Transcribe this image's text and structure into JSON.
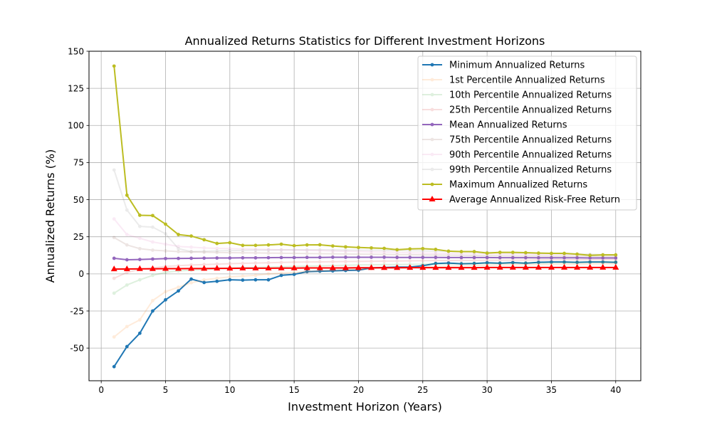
{
  "chart_data": {
    "type": "line",
    "title": "Annualized Returns Statistics for Different Investment Horizons",
    "xlabel": "Investment Horizon (Years)",
    "ylabel": "Annualized Returns (%)",
    "xlim": [
      -0.95,
      41.95
    ],
    "ylim": [
      -72.0,
      150.0
    ],
    "xticks": [
      0,
      5,
      10,
      15,
      20,
      25,
      30,
      35,
      40
    ],
    "yticks": [
      -50,
      -25,
      0,
      25,
      50,
      75,
      100,
      125,
      150
    ],
    "grid": true,
    "legend_position": "upper right",
    "x": [
      1,
      2,
      3,
      4,
      5,
      6,
      7,
      8,
      9,
      10,
      11,
      12,
      13,
      14,
      15,
      16,
      17,
      18,
      19,
      20,
      21,
      22,
      23,
      24,
      25,
      26,
      27,
      28,
      29,
      30,
      31,
      32,
      33,
      34,
      35,
      36,
      37,
      38,
      39,
      40
    ],
    "series": [
      {
        "name": "Minimum Annualized Returns",
        "color": "#1f77b4",
        "opacity": 1,
        "width": 2,
        "marker": "circle",
        "values": [
          -62.5,
          -49,
          -40,
          -25,
          -17.5,
          -11.5,
          -3.5,
          -5.8,
          -5,
          -4,
          -4.2,
          -4,
          -4,
          -1,
          -0.3,
          1.5,
          1.8,
          2,
          2.3,
          2.5,
          4,
          4.3,
          4.6,
          4.6,
          5.5,
          7,
          7.3,
          6.8,
          7,
          7.5,
          7.2,
          7.6,
          7.2,
          7.8,
          8,
          8,
          7.8,
          8,
          8,
          7.8
        ]
      },
      {
        "name": "1st Percentile Annualized Returns",
        "color": "#ff7f0e",
        "opacity": 0.15,
        "width": 2,
        "marker": "circle",
        "values": [
          -42.5,
          -35.5,
          -31,
          -18,
          -12,
          -9,
          -6,
          -4,
          -3,
          -2,
          -1.5,
          -1,
          0,
          0.5,
          1,
          1.5,
          2,
          2.5,
          2.8,
          3,
          3.5,
          3.8,
          4,
          4.2,
          4.5,
          5,
          5.2,
          5.4,
          5.6,
          5.8,
          6,
          6.1,
          6.2,
          6.3,
          6.4,
          6.5,
          6.6,
          6.7,
          6.8,
          6.9
        ]
      },
      {
        "name": "10th Percentile Annualized Returns",
        "color": "#2ca02c",
        "opacity": 0.15,
        "width": 2,
        "marker": "circle",
        "values": [
          -13,
          -7.5,
          -4,
          -1,
          1,
          2,
          2.5,
          3,
          3.5,
          4,
          4.2,
          4.4,
          4.6,
          4.8,
          5,
          5.2,
          5.4,
          5.6,
          5.8,
          6,
          6.1,
          6.2,
          6.3,
          6.4,
          6.5,
          6.6,
          6.7,
          6.8,
          6.9,
          7,
          7.1,
          7.2,
          7.3,
          7.4,
          7.5,
          7.6,
          7.7,
          7.8,
          7.9,
          8
        ]
      },
      {
        "name": "25th Percentile Annualized Returns",
        "color": "#d62728",
        "opacity": 0.15,
        "width": 2,
        "marker": "circle",
        "values": [
          -3,
          1,
          3,
          4,
          5,
          5.5,
          6,
          6.3,
          6.6,
          6.9,
          7.1,
          7.3,
          7.5,
          7.7,
          7.9,
          8,
          8.1,
          8.2,
          8.3,
          8.4,
          8.5,
          8.6,
          8.7,
          8.8,
          8.9,
          9,
          9,
          9.1,
          9.1,
          9.2,
          9.2,
          9.3,
          9.3,
          9.4,
          9.4,
          9.5,
          9.5,
          9.6,
          9.6,
          9.7
        ]
      },
      {
        "name": "Mean Annualized Returns",
        "color": "#9467bd",
        "opacity": 1,
        "width": 2,
        "marker": "circle",
        "values": [
          10.5,
          9.5,
          9.7,
          10,
          10.3,
          10.4,
          10.5,
          10.6,
          10.7,
          10.7,
          10.8,
          10.8,
          10.9,
          11,
          11,
          11.1,
          11.1,
          11.2,
          11.2,
          11.2,
          11.2,
          11.2,
          11.1,
          11.1,
          11.1,
          11.1,
          11,
          11,
          11,
          11,
          10.9,
          10.9,
          10.9,
          10.8,
          10.8,
          10.8,
          10.8,
          10.7,
          10.7,
          10.7
        ]
      },
      {
        "name": "75th Percentile Annualized Returns",
        "color": "#8c564b",
        "opacity": 0.15,
        "width": 2,
        "marker": "circle",
        "values": [
          24.5,
          19.5,
          17,
          16,
          15.5,
          15,
          14.8,
          14.6,
          14.4,
          14.3,
          14.2,
          14.1,
          14,
          13.9,
          13.8,
          13.7,
          13.6,
          13.5,
          13.4,
          13.3,
          13.2,
          13.1,
          13,
          12.9,
          12.8,
          12.7,
          12.6,
          12.5,
          12.4,
          12.3,
          12.2,
          12.1,
          12,
          12,
          11.9,
          11.9,
          11.8,
          11.8,
          11.7,
          11.7
        ]
      },
      {
        "name": "90th Percentile Annualized Returns",
        "color": "#e377c2",
        "opacity": 0.15,
        "width": 2,
        "marker": "circle",
        "values": [
          37,
          26.5,
          24,
          21.5,
          20,
          18.5,
          18,
          17.5,
          17.2,
          17,
          16.8,
          16.6,
          16.4,
          16.2,
          16,
          15.8,
          15.6,
          15.4,
          15.2,
          15,
          14.8,
          14.6,
          14.4,
          14.2,
          14,
          13.9,
          13.8,
          13.7,
          13.6,
          13.5,
          13.4,
          13.3,
          13.2,
          13.1,
          13,
          12.9,
          12.8,
          12.7,
          12.6,
          12.5
        ]
      },
      {
        "name": "99th Percentile Annualized Returns",
        "color": "#7f7f7f",
        "opacity": 0.15,
        "width": 2,
        "marker": "circle",
        "values": [
          70,
          43,
          32,
          31.5,
          27,
          17,
          15,
          15.2,
          15.5,
          15.7,
          15.8,
          16,
          16,
          16.1,
          16.2,
          16.2,
          16.2,
          16.1,
          16,
          16,
          15.9,
          15.8,
          15.7,
          15.6,
          15.5,
          15.3,
          15.1,
          14.9,
          14.7,
          14.5,
          14.3,
          14.2,
          14,
          13.9,
          13.8,
          13.6,
          13.4,
          13.2,
          13,
          12.8
        ]
      },
      {
        "name": "Maximum Annualized Returns",
        "color": "#bcbd22",
        "opacity": 1,
        "width": 2,
        "marker": "circle",
        "values": [
          140,
          53,
          39.5,
          39.3,
          33.5,
          26.5,
          25.5,
          23,
          20.5,
          21,
          19.2,
          19.2,
          19.5,
          20,
          19,
          19.5,
          19.6,
          18.8,
          18.2,
          17.8,
          17.5,
          17.2,
          16.3,
          16.8,
          17,
          16.5,
          15.3,
          15,
          15,
          14,
          14.5,
          14.5,
          14.3,
          14,
          13.8,
          13.8,
          13.3,
          12.5,
          12.8,
          12.8
        ]
      },
      {
        "name": "Average Annualized Risk-Free Return",
        "color": "#ff0000",
        "opacity": 1,
        "width": 2,
        "marker": "triangle",
        "values": [
          3.2,
          3.3,
          3.4,
          3.4,
          3.5,
          3.5,
          3.6,
          3.6,
          3.7,
          3.7,
          3.8,
          3.8,
          3.8,
          3.9,
          3.9,
          4,
          4,
          4,
          4,
          4.1,
          4.1,
          4.1,
          4.1,
          4.2,
          4.2,
          4.2,
          4.2,
          4.2,
          4.2,
          4.3,
          4.3,
          4.3,
          4.3,
          4.3,
          4.3,
          4.3,
          4.3,
          4.3,
          4.3,
          4.3
        ]
      }
    ]
  }
}
